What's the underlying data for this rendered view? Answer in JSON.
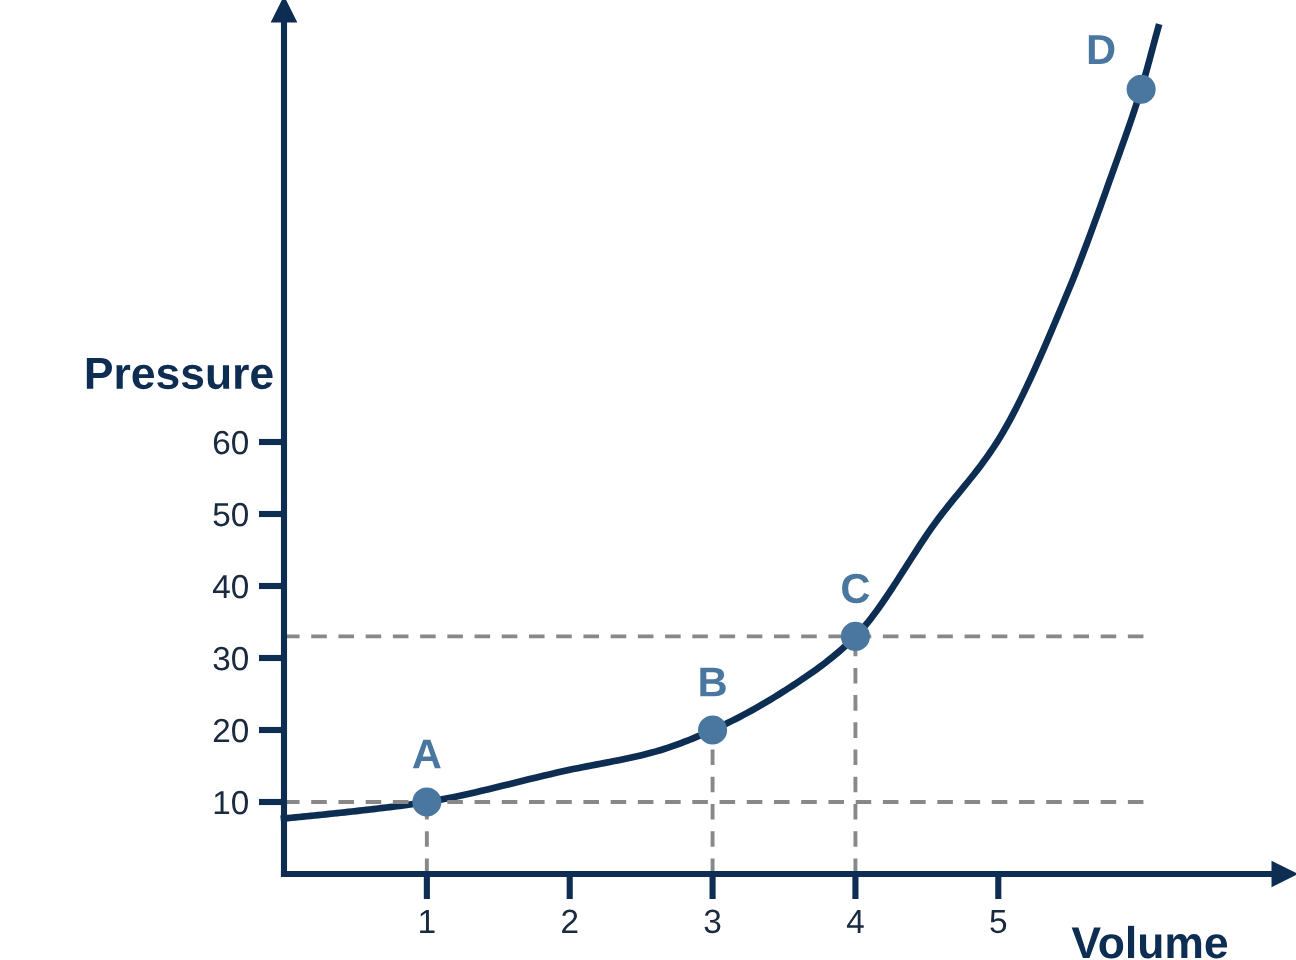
{
  "chart_data": {
    "type": "line",
    "xlabel": "Volume",
    "ylabel": "Pressure",
    "xlim": [
      0,
      7
    ],
    "ylim": [
      0,
      120
    ],
    "xticks": [
      1,
      2,
      3,
      4,
      5
    ],
    "yticks": [
      10,
      20,
      30,
      40,
      50,
      60
    ],
    "grid": false,
    "legend": false,
    "series": [
      {
        "color": "#0d2d52",
        "line_style": "solid",
        "marker": "none",
        "x": [
          0,
          0.53,
          1,
          1.96,
          2.6,
          3,
          3.54,
          4,
          4.56,
          5.01,
          5.49,
          5.81,
          6,
          6.12
        ],
        "values": [
          7.7,
          8.8,
          10,
          14.3,
          17,
          20,
          25.9,
          33,
          48.8,
          60.6,
          81,
          98,
          109,
          117.6
        ]
      },
      {
        "type": "line",
        "color": "#888888",
        "line_style": "dashed",
        "marker": "none",
        "x": [
          0,
          6.05
        ],
        "values": [
          10,
          10
        ]
      },
      {
        "type": "line",
        "color": "#888888",
        "line_style": "dashed",
        "marker": "none",
        "x": [
          0,
          6.05
        ],
        "values": [
          33,
          33
        ]
      },
      {
        "type": "line",
        "color": "#888888",
        "line_style": "dashed",
        "marker": "none",
        "x": [
          1,
          1
        ],
        "values": [
          0,
          10
        ]
      },
      {
        "type": "line",
        "color": "#888888",
        "line_style": "dashed",
        "marker": "none",
        "x": [
          3,
          3
        ],
        "values": [
          0,
          20
        ]
      },
      {
        "type": "line",
        "color": "#888888",
        "line_style": "dashed",
        "marker": "none",
        "x": [
          4,
          4
        ],
        "values": [
          0,
          33
        ]
      },
      {
        "type": "scatter",
        "color": "#4a77a0",
        "marker": "circle",
        "x": [
          1,
          3,
          4,
          6
        ],
        "values": [
          10,
          20,
          33,
          109
        ]
      }
    ],
    "annotations": [
      {
        "text": "A",
        "x": 1,
        "y": 10
      },
      {
        "text": "B",
        "x": 3,
        "y": 20
      },
      {
        "text": "C",
        "x": 4,
        "y": 33
      },
      {
        "text": "D",
        "x": 6,
        "y": 109
      }
    ]
  }
}
